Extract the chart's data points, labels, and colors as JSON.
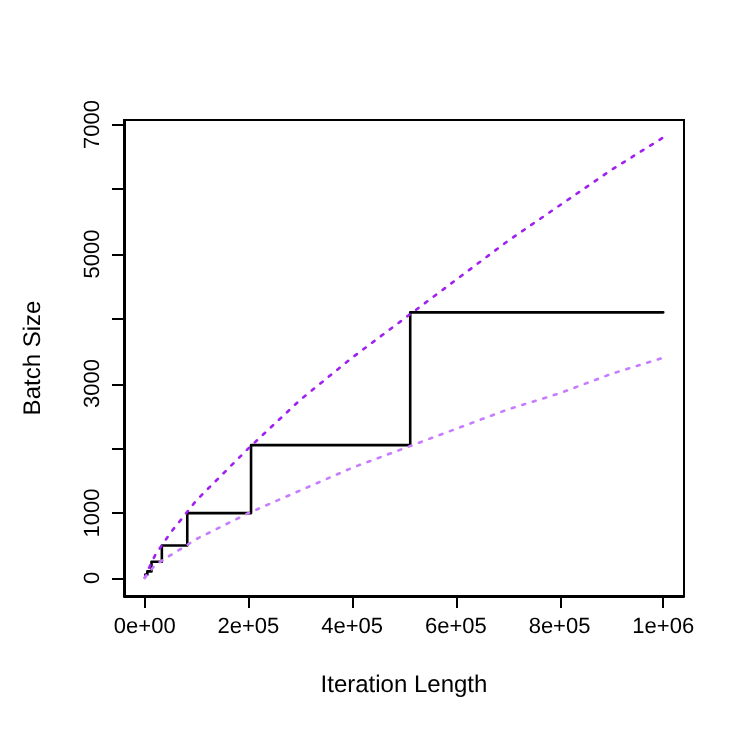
{
  "chart_data": {
    "type": "line",
    "xlabel": "Iteration Length",
    "ylabel": "Batch Size",
    "xlim": [
      -40000,
      1040000
    ],
    "ylim": [
      -280,
      7070
    ],
    "xticks": [
      {
        "value": 0,
        "label": "0e+00"
      },
      {
        "value": 200000,
        "label": "2e+05"
      },
      {
        "value": 400000,
        "label": "4e+05"
      },
      {
        "value": 600000,
        "label": "6e+05"
      },
      {
        "value": 800000,
        "label": "8e+05"
      },
      {
        "value": 1000000,
        "label": "1e+06"
      }
    ],
    "yticks": [
      0,
      1000,
      {
        "value": 2000,
        "label": null
      },
      3000,
      {
        "value": 4000,
        "label": null
      },
      5000,
      {
        "value": 6000,
        "label": null
      },
      7000
    ],
    "grid": false,
    "marker": "none",
    "series": [
      {
        "type": "step",
        "color": "#000000",
        "line_style": "solid",
        "x": [
          1000,
          5000,
          13000,
          33000,
          82000,
          205000,
          512000,
          1000000
        ],
        "values": [
          50,
          100,
          250,
          500,
          1000,
          2050,
          4100,
          4100
        ]
      },
      {
        "color": "#a020f0",
        "line_style": "dotted",
        "x": [
          0,
          5000,
          20000,
          50000,
          100000,
          200000,
          300000,
          400000,
          500000,
          600000,
          700000,
          800000,
          900000,
          1000000
        ],
        "values": [
          0,
          100,
          350,
          700,
          1200,
          2000,
          2750,
          3400,
          4000,
          4600,
          5200,
          5750,
          6300,
          6800
        ]
      },
      {
        "color": "#c77cff",
        "line_style": "dotted",
        "x": [
          0,
          5000,
          20000,
          50000,
          100000,
          200000,
          300000,
          400000,
          500000,
          600000,
          700000,
          800000,
          900000,
          1000000
        ],
        "values": [
          0,
          50,
          200,
          350,
          600,
          1000,
          1350,
          1700,
          2000,
          2300,
          2600,
          2850,
          3150,
          3400
        ]
      }
    ]
  }
}
